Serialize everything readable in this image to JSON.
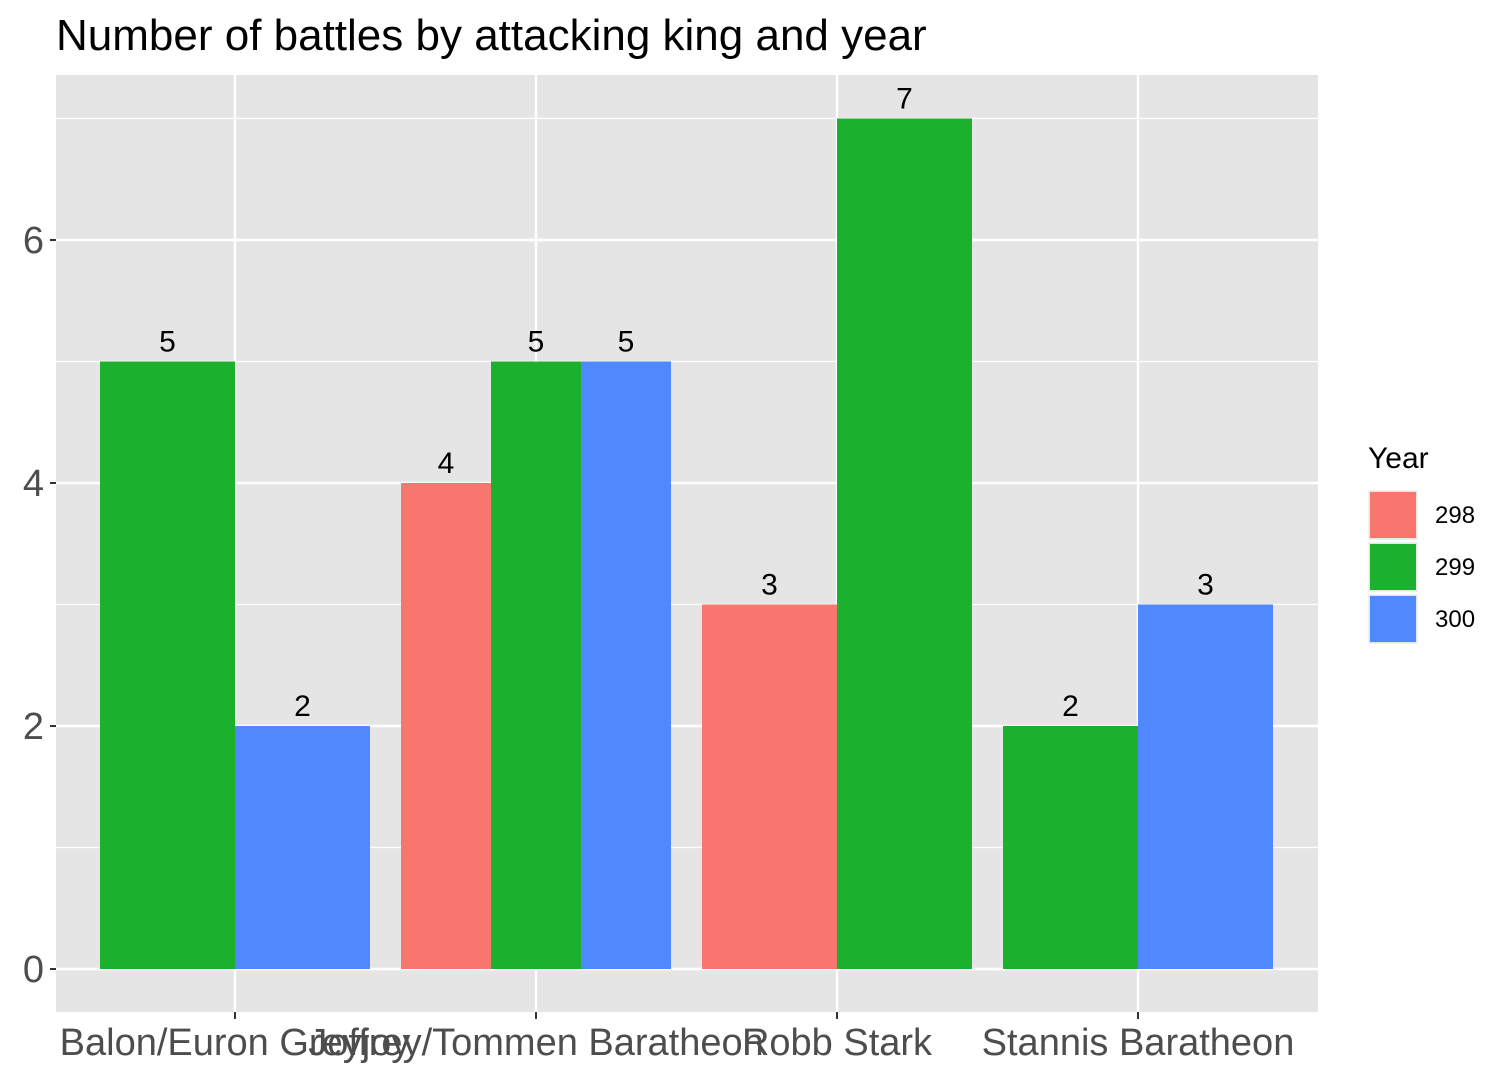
{
  "chart_data": {
    "type": "bar",
    "title": "Number of battles by attacking king and year",
    "xlabel": "",
    "ylabel": "",
    "categories": [
      "Balon/Euron Greyjoy",
      "Joffrey/Tommen Baratheon",
      "Robb Stark",
      "Stannis Baratheon"
    ],
    "series": [
      {
        "name": "298",
        "color": "#F8766D",
        "values": [
          null,
          4,
          3,
          null
        ]
      },
      {
        "name": "299",
        "color": "#1BB02E",
        "values": [
          5,
          5,
          7,
          2
        ]
      },
      {
        "name": "300",
        "color": "#5088FF",
        "values": [
          2,
          5,
          null,
          3
        ]
      }
    ],
    "ylim": [
      0,
      7.35
    ],
    "yticks": [
      0,
      2,
      4,
      6
    ],
    "ytick_labels": [
      "0",
      "2",
      "4",
      "6"
    ],
    "legend": {
      "title": "Year",
      "position": "right"
    },
    "grid": true,
    "panel_background": "#E5E5E5"
  }
}
